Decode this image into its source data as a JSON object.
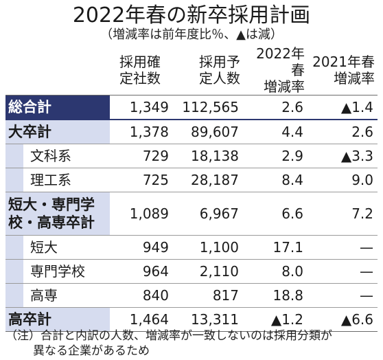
{
  "title": "2022年春の新卒採用計画",
  "subtitle": "（増減率は前年度比％、▲は減）",
  "columns": [
    {
      "line1": "採用確",
      "line2": "定社数"
    },
    {
      "line1": "採用予",
      "line2": "定人数"
    },
    {
      "line1": "2022年春",
      "line2": "増減率"
    },
    {
      "line1": "2021年春",
      "line2": "増減率"
    }
  ],
  "rows": [
    {
      "label": "総合計",
      "values": [
        "1,349",
        "112,565",
        "2.6",
        "▲1.4"
      ]
    },
    {
      "label": "大卒計",
      "values": [
        "1,378",
        "89,607",
        "4.4",
        "2.6"
      ]
    },
    {
      "label": "文科系",
      "values": [
        "729",
        "18,138",
        "2.9",
        "▲3.3"
      ]
    },
    {
      "label": "理工系",
      "values": [
        "725",
        "28,187",
        "8.4",
        "9.0"
      ]
    },
    {
      "label_line1": "短大・専門学",
      "label_line2": "校・高専卒計",
      "values": [
        "1,089",
        "6,967",
        "6.6",
        "7.2"
      ]
    },
    {
      "label": "短大",
      "values": [
        "949",
        "1,100",
        "17.1",
        "—"
      ]
    },
    {
      "label": "専門学校",
      "values": [
        "964",
        "2,110",
        "8.0",
        "—"
      ]
    },
    {
      "label": "高専",
      "values": [
        "840",
        "817",
        "18.8",
        "—"
      ]
    },
    {
      "label": "高卒計",
      "values": [
        "1,464",
        "13,311",
        "▲1.2",
        "▲6.6"
      ]
    }
  ],
  "footnote": {
    "line1": "（注）合計と内訳の人数、増減率が一致しないのは採用分類が",
    "line2": "異なる企業があるため"
  },
  "colors": {
    "navy": "#2c3770",
    "light_blue": "#d6dcef"
  }
}
